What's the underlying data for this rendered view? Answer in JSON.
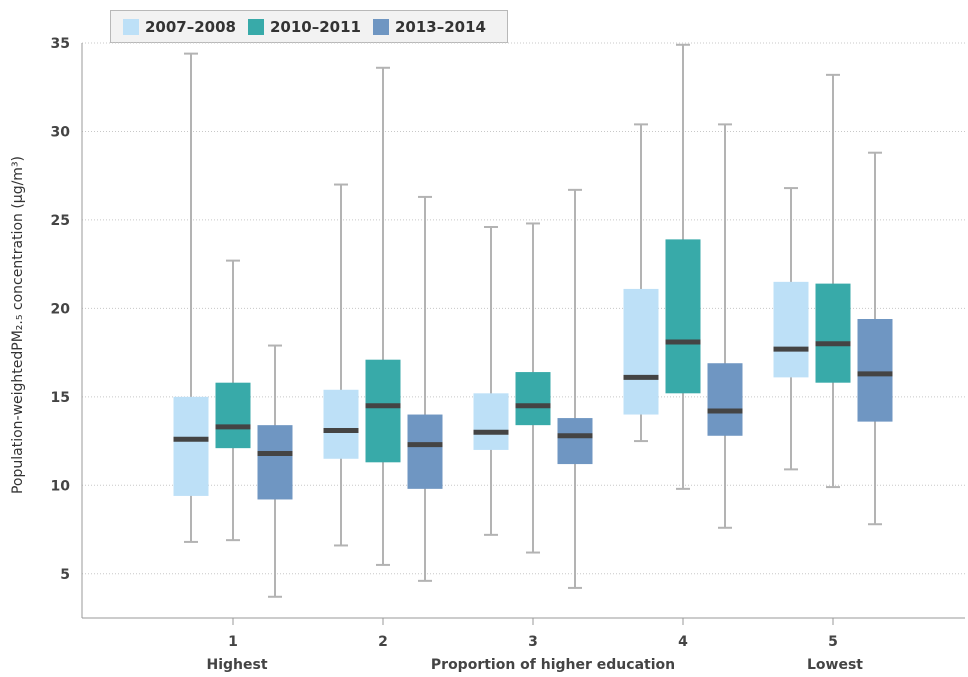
{
  "chart_data": {
    "type": "boxplot",
    "title": "",
    "ylabel": "Population-weightedPM₂.₅ concentration (μg/m³)",
    "xlabel": "Proportion of higher education",
    "x_end_labels": {
      "left": "Highest",
      "right": "Lowest"
    },
    "categories": [
      "1",
      "2",
      "3",
      "4",
      "5"
    ],
    "ylim": [
      2.5,
      35
    ],
    "yticks": [
      5,
      10,
      15,
      20,
      25,
      30,
      35
    ],
    "grid": true,
    "legend_position": "top-left",
    "series": [
      {
        "name": "2007–2008",
        "color": "#bde0f7",
        "boxes": [
          {
            "min": 6.8,
            "q1": 9.4,
            "median": 12.6,
            "q3": 15.0,
            "max": 34.4
          },
          {
            "min": 6.6,
            "q1": 11.5,
            "median": 13.1,
            "q3": 15.4,
            "max": 27.0
          },
          {
            "min": 7.2,
            "q1": 12.0,
            "median": 13.0,
            "q3": 15.2,
            "max": 24.6
          },
          {
            "min": 12.5,
            "q1": 14.0,
            "median": 16.1,
            "q3": 21.1,
            "max": 30.4
          },
          {
            "min": 10.9,
            "q1": 16.1,
            "median": 17.7,
            "q3": 21.5,
            "max": 26.8
          }
        ]
      },
      {
        "name": "2010–2011",
        "color": "#38aaa9",
        "boxes": [
          {
            "min": 6.9,
            "q1": 12.1,
            "median": 13.3,
            "q3": 15.8,
            "max": 22.7
          },
          {
            "min": 5.5,
            "q1": 11.3,
            "median": 14.5,
            "q3": 17.1,
            "max": 33.6
          },
          {
            "min": 6.2,
            "q1": 13.4,
            "median": 14.5,
            "q3": 16.4,
            "max": 24.8
          },
          {
            "min": 9.8,
            "q1": 15.2,
            "median": 18.1,
            "q3": 23.9,
            "max": 34.9
          },
          {
            "min": 9.9,
            "q1": 15.8,
            "median": 18.0,
            "q3": 21.4,
            "max": 33.2
          }
        ]
      },
      {
        "name": "2013–2014",
        "color": "#6f96c2",
        "boxes": [
          {
            "min": 3.7,
            "q1": 9.2,
            "median": 11.8,
            "q3": 13.4,
            "max": 17.9
          },
          {
            "min": 4.6,
            "q1": 9.8,
            "median": 12.3,
            "q3": 14.0,
            "max": 26.3
          },
          {
            "min": 4.2,
            "q1": 11.2,
            "median": 12.8,
            "q3": 13.8,
            "max": 26.7
          },
          {
            "min": 7.6,
            "q1": 12.8,
            "median": 14.2,
            "q3": 16.9,
            "max": 30.4
          },
          {
            "min": 7.8,
            "q1": 13.6,
            "median": 16.3,
            "q3": 19.4,
            "max": 28.8
          }
        ]
      }
    ]
  }
}
